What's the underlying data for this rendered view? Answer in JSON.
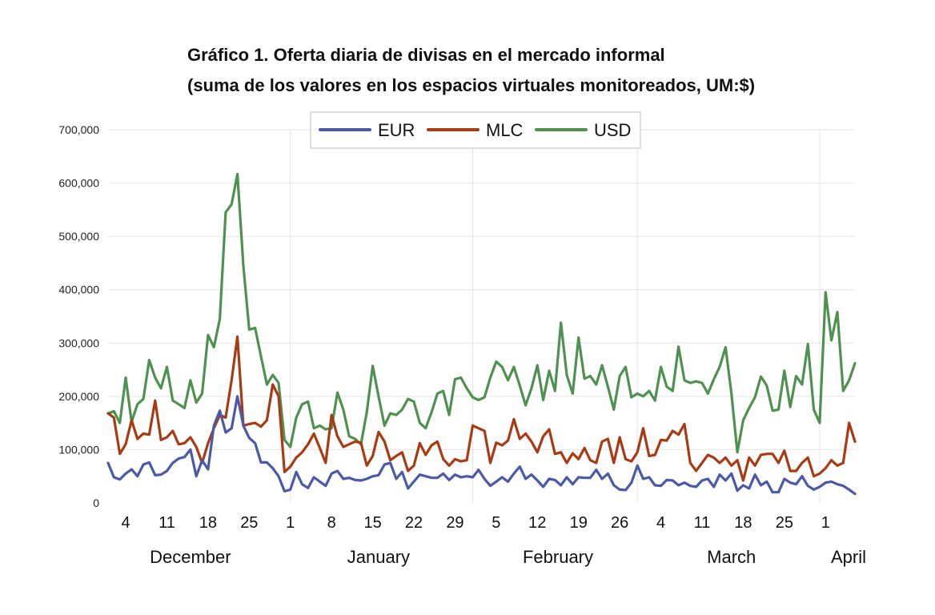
{
  "title_line1": "Gráfico 1. Oferta diaria de divisas en el mercado informal",
  "title_line2": "(suma de los valores en los espacios virtuales monitoreados, UM:$)",
  "chart_data": {
    "type": "line",
    "title": "Gráfico 1. Oferta diaria de divisas en el mercado informal",
    "subtitle": "(suma de los valores en los espacios virtuales monitoreados, UM:$)",
    "x_start": "Dec 1",
    "x_end": "Apr 7",
    "ylim": [
      0,
      700000
    ],
    "y_ticks": [
      "0",
      "100,000",
      "200,000",
      "300,000",
      "400,000",
      "500,000",
      "600,000",
      "700,000"
    ],
    "x_ticks": [
      {
        "day": 4,
        "label": "4"
      },
      {
        "day": 11,
        "label": "11"
      },
      {
        "day": 18,
        "label": "18"
      },
      {
        "day": 25,
        "label": "25"
      },
      {
        "day": 32,
        "label": "1"
      },
      {
        "day": 39,
        "label": "8"
      },
      {
        "day": 46,
        "label": "15"
      },
      {
        "day": 53,
        "label": "22"
      },
      {
        "day": 60,
        "label": "29"
      },
      {
        "day": 67,
        "label": "5"
      },
      {
        "day": 74,
        "label": "12"
      },
      {
        "day": 81,
        "label": "19"
      },
      {
        "day": 88,
        "label": "26"
      },
      {
        "day": 95,
        "label": "4"
      },
      {
        "day": 102,
        "label": "11"
      },
      {
        "day": 109,
        "label": "18"
      },
      {
        "day": 116,
        "label": "25"
      },
      {
        "day": 123,
        "label": "1"
      }
    ],
    "months": [
      {
        "label": "December",
        "day": 15
      },
      {
        "label": "January",
        "day": 47
      },
      {
        "label": "February",
        "day": 77.5
      },
      {
        "label": "March",
        "day": 107
      },
      {
        "label": "April",
        "day": 127
      }
    ],
    "vgrid_days": [
      32,
      63,
      91,
      122
    ],
    "grid": true,
    "legend_position": "top-center",
    "series": [
      {
        "name": "EUR",
        "color": "#4a5aa8",
        "values": [
          75000,
          48000,
          44000,
          55000,
          63000,
          50000,
          72000,
          76000,
          52000,
          53000,
          60000,
          75000,
          83000,
          86000,
          100000,
          50000,
          80000,
          63000,
          145000,
          173000,
          132000,
          140000,
          200000,
          145000,
          122000,
          112000,
          76000,
          76000,
          65000,
          50000,
          22000,
          25000,
          58000,
          35000,
          28000,
          48000,
          40000,
          32000,
          55000,
          60000,
          45000,
          47000,
          43000,
          42000,
          45000,
          50000,
          52000,
          72000,
          75000,
          45000,
          58000,
          27000,
          40000,
          53000,
          50000,
          47000,
          47000,
          55000,
          43000,
          53000,
          48000,
          50000,
          48000,
          62000,
          45000,
          32000,
          40000,
          48000,
          40000,
          55000,
          68000,
          45000,
          53000,
          42000,
          30000,
          45000,
          43000,
          33000,
          48000,
          35000,
          48000,
          47000,
          47000,
          62000,
          45000,
          55000,
          33000,
          25000,
          24000,
          38000,
          70000,
          45000,
          48000,
          33000,
          32000,
          43000,
          42000,
          33000,
          38000,
          32000,
          30000,
          42000,
          45000,
          30000,
          53000,
          42000,
          55000,
          23000,
          33000,
          27000,
          53000,
          33000,
          40000,
          20000,
          20000,
          45000,
          38000,
          35000,
          50000,
          32000,
          25000,
          30000,
          38000,
          40000,
          35000,
          32000,
          25000,
          17000
        ]
      },
      {
        "name": "MLC",
        "color": "#a83a14",
        "values": [
          168000,
          160000,
          92000,
          110000,
          155000,
          120000,
          130000,
          128000,
          192000,
          118000,
          123000,
          135000,
          110000,
          112000,
          123000,
          105000,
          75000,
          112000,
          140000,
          165000,
          160000,
          230000,
          312000,
          145000,
          148000,
          150000,
          143000,
          155000,
          222000,
          200000,
          58000,
          68000,
          85000,
          95000,
          110000,
          130000,
          103000,
          75000,
          165000,
          125000,
          105000,
          110000,
          115000,
          113000,
          70000,
          88000,
          133000,
          115000,
          80000,
          88000,
          95000,
          60000,
          70000,
          112000,
          90000,
          108000,
          115000,
          82000,
          70000,
          82000,
          78000,
          80000,
          145000,
          140000,
          135000,
          75000,
          113000,
          108000,
          117000,
          157000,
          120000,
          130000,
          115000,
          95000,
          125000,
          138000,
          92000,
          95000,
          75000,
          93000,
          82000,
          103000,
          80000,
          75000,
          115000,
          120000,
          75000,
          123000,
          82000,
          78000,
          95000,
          140000,
          88000,
          90000,
          118000,
          117000,
          135000,
          128000,
          148000,
          75000,
          60000,
          75000,
          90000,
          85000,
          75000,
          85000,
          70000,
          80000,
          42000,
          85000,
          70000,
          90000,
          92000,
          92000,
          75000,
          98000,
          60000,
          60000,
          75000,
          85000,
          50000,
          55000,
          65000,
          80000,
          70000,
          75000,
          150000,
          115000
        ]
      },
      {
        "name": "USD",
        "color": "#4f9150",
        "values": [
          168000,
          172000,
          150000,
          235000,
          152000,
          185000,
          195000,
          268000,
          235000,
          215000,
          255000,
          192000,
          185000,
          178000,
          230000,
          188000,
          205000,
          315000,
          292000,
          345000,
          545000,
          560000,
          617000,
          445000,
          325000,
          328000,
          275000,
          222000,
          240000,
          225000,
          118000,
          105000,
          160000,
          185000,
          190000,
          140000,
          145000,
          138000,
          140000,
          207000,
          175000,
          125000,
          120000,
          110000,
          170000,
          257000,
          200000,
          145000,
          168000,
          165000,
          175000,
          195000,
          190000,
          150000,
          140000,
          170000,
          205000,
          210000,
          165000,
          232000,
          235000,
          215000,
          198000,
          193000,
          198000,
          235000,
          265000,
          255000,
          230000,
          255000,
          220000,
          183000,
          215000,
          258000,
          193000,
          248000,
          210000,
          338000,
          240000,
          205000,
          310000,
          233000,
          238000,
          222000,
          258000,
          218000,
          175000,
          238000,
          255000,
          198000,
          205000,
          200000,
          210000,
          192000,
          255000,
          218000,
          210000,
          293000,
          230000,
          225000,
          228000,
          225000,
          205000,
          232000,
          255000,
          292000,
          205000,
          95000,
          155000,
          178000,
          198000,
          237000,
          220000,
          173000,
          175000,
          248000,
          180000,
          238000,
          222000,
          298000,
          175000,
          150000,
          395000,
          305000,
          358000,
          210000,
          230000,
          262000
        ]
      }
    ]
  }
}
